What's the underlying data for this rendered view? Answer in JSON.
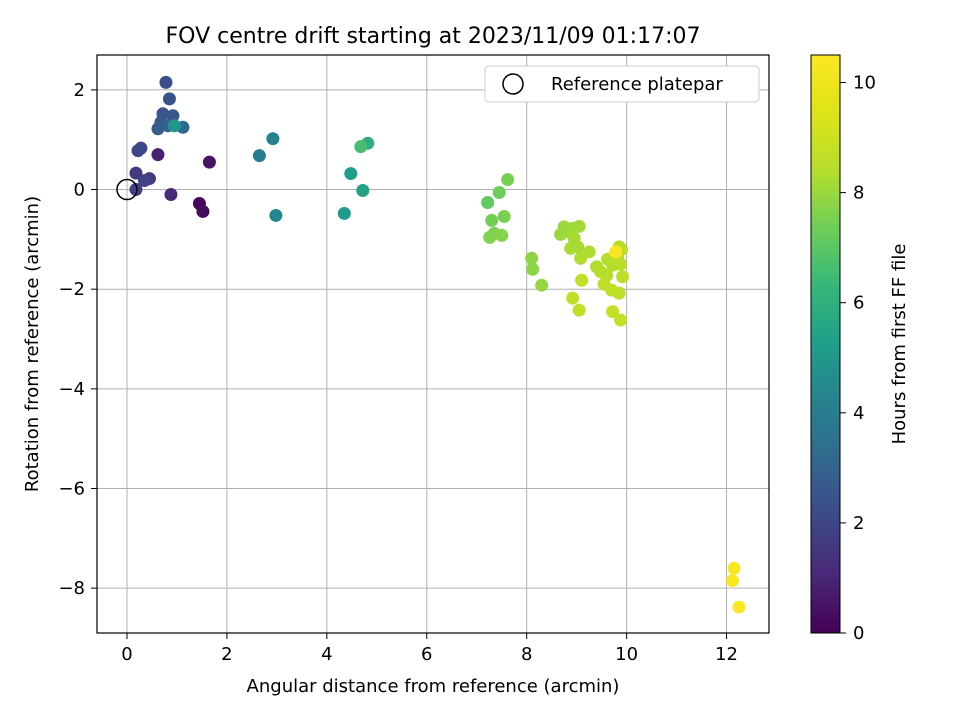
{
  "chart_data": {
    "type": "scatter",
    "title": "FOV centre drift starting at 2023/11/09 01:17:07",
    "xlabel": "Angular distance from reference (arcmin)",
    "ylabel": "Rotation from reference (arcmin)",
    "xlim": [
      -0.6,
      12.85
    ],
    "ylim": [
      -8.9,
      2.7
    ],
    "xticks": [
      0,
      2,
      4,
      6,
      8,
      10,
      12
    ],
    "yticks": [
      -8,
      -6,
      -4,
      -2,
      0,
      2
    ],
    "grid": true,
    "legend": {
      "position": "top-right",
      "label": "Reference platepar"
    },
    "reference_point": {
      "x": 0,
      "y": 0
    },
    "colorbar": {
      "label": "Hours from first FF file",
      "range": [
        0,
        10.5
      ],
      "ticks": [
        0,
        2,
        4,
        6,
        8,
        10
      ],
      "colormap": "viridis"
    },
    "points": [
      {
        "x": 1.45,
        "y": -0.28,
        "h": 0.2
      },
      {
        "x": 1.52,
        "y": -0.44,
        "h": 0.3
      },
      {
        "x": 1.65,
        "y": 0.55,
        "h": 0.5
      },
      {
        "x": 0.62,
        "y": 0.7,
        "h": 0.9
      },
      {
        "x": 0.88,
        "y": -0.1,
        "h": 1.1
      },
      {
        "x": 0.18,
        "y": 0.33,
        "h": 1.6
      },
      {
        "x": 0.45,
        "y": 0.22,
        "h": 1.7
      },
      {
        "x": 0.18,
        "y": 0.0,
        "h": 1.8
      },
      {
        "x": 0.35,
        "y": 0.18,
        "h": 1.9
      },
      {
        "x": 0.22,
        "y": 0.78,
        "h": 2.0
      },
      {
        "x": 0.28,
        "y": 0.83,
        "h": 2.1
      },
      {
        "x": 0.78,
        "y": 2.15,
        "h": 2.3
      },
      {
        "x": 0.85,
        "y": 1.82,
        "h": 2.4
      },
      {
        "x": 0.72,
        "y": 1.52,
        "h": 2.5
      },
      {
        "x": 0.92,
        "y": 1.48,
        "h": 2.6
      },
      {
        "x": 0.68,
        "y": 1.35,
        "h": 2.6
      },
      {
        "x": 0.62,
        "y": 1.22,
        "h": 2.8
      },
      {
        "x": 0.82,
        "y": 1.28,
        "h": 3.0
      },
      {
        "x": 1.12,
        "y": 1.25,
        "h": 3.2
      },
      {
        "x": 2.65,
        "y": 0.68,
        "h": 4.0
      },
      {
        "x": 2.92,
        "y": 1.02,
        "h": 4.2
      },
      {
        "x": 2.98,
        "y": -0.52,
        "h": 4.3
      },
      {
        "x": 0.95,
        "y": 1.28,
        "h": 5.0
      },
      {
        "x": 4.35,
        "y": -0.48,
        "h": 5.1
      },
      {
        "x": 4.48,
        "y": 0.32,
        "h": 5.3
      },
      {
        "x": 4.72,
        "y": -0.02,
        "h": 5.5
      },
      {
        "x": 4.82,
        "y": 0.93,
        "h": 6.0
      },
      {
        "x": 4.68,
        "y": 0.86,
        "h": 6.6
      },
      {
        "x": 7.22,
        "y": -0.26,
        "h": 7.1
      },
      {
        "x": 7.45,
        "y": -0.06,
        "h": 7.3
      },
      {
        "x": 7.62,
        "y": 0.2,
        "h": 7.5
      },
      {
        "x": 7.3,
        "y": -0.62,
        "h": 7.4
      },
      {
        "x": 7.55,
        "y": -0.54,
        "h": 7.5
      },
      {
        "x": 7.26,
        "y": -0.96,
        "h": 7.6
      },
      {
        "x": 7.35,
        "y": -0.88,
        "h": 7.6
      },
      {
        "x": 7.5,
        "y": -0.92,
        "h": 7.7
      },
      {
        "x": 8.1,
        "y": -1.38,
        "h": 7.8
      },
      {
        "x": 8.12,
        "y": -1.6,
        "h": 7.8
      },
      {
        "x": 8.3,
        "y": -1.92,
        "h": 7.9
      },
      {
        "x": 8.68,
        "y": -0.9,
        "h": 8.0
      },
      {
        "x": 8.75,
        "y": -0.75,
        "h": 8.0
      },
      {
        "x": 8.85,
        "y": -0.85,
        "h": 8.1
      },
      {
        "x": 8.92,
        "y": -0.78,
        "h": 8.1
      },
      {
        "x": 9.05,
        "y": -0.74,
        "h": 8.1
      },
      {
        "x": 8.95,
        "y": -0.98,
        "h": 8.2
      },
      {
        "x": 8.88,
        "y": -1.18,
        "h": 8.2
      },
      {
        "x": 9.02,
        "y": -1.15,
        "h": 8.2
      },
      {
        "x": 9.08,
        "y": -1.38,
        "h": 8.3
      },
      {
        "x": 9.25,
        "y": -1.25,
        "h": 8.3
      },
      {
        "x": 9.4,
        "y": -1.55,
        "h": 8.3
      },
      {
        "x": 9.48,
        "y": -1.65,
        "h": 8.4
      },
      {
        "x": 9.6,
        "y": -1.72,
        "h": 8.4
      },
      {
        "x": 9.62,
        "y": -1.4,
        "h": 8.4
      },
      {
        "x": 9.72,
        "y": -1.52,
        "h": 8.4
      },
      {
        "x": 9.85,
        "y": -1.15,
        "h": 8.5
      },
      {
        "x": 9.9,
        "y": -1.2,
        "h": 8.5
      },
      {
        "x": 9.82,
        "y": -1.35,
        "h": 8.5
      },
      {
        "x": 9.88,
        "y": -1.5,
        "h": 8.5
      },
      {
        "x": 9.92,
        "y": -1.75,
        "h": 8.6
      },
      {
        "x": 9.55,
        "y": -1.9,
        "h": 8.6
      },
      {
        "x": 9.7,
        "y": -2.02,
        "h": 8.6
      },
      {
        "x": 9.85,
        "y": -2.08,
        "h": 8.6
      },
      {
        "x": 9.1,
        "y": -1.82,
        "h": 8.7
      },
      {
        "x": 8.92,
        "y": -2.18,
        "h": 8.7
      },
      {
        "x": 9.05,
        "y": -2.42,
        "h": 8.7
      },
      {
        "x": 9.72,
        "y": -2.45,
        "h": 8.8
      },
      {
        "x": 9.88,
        "y": -2.62,
        "h": 8.8
      },
      {
        "x": 9.78,
        "y": -1.25,
        "h": 10.4
      },
      {
        "x": 12.15,
        "y": -7.6,
        "h": 10.4
      },
      {
        "x": 12.12,
        "y": -7.85,
        "h": 10.4
      },
      {
        "x": 12.25,
        "y": -8.38,
        "h": 10.4
      }
    ]
  }
}
